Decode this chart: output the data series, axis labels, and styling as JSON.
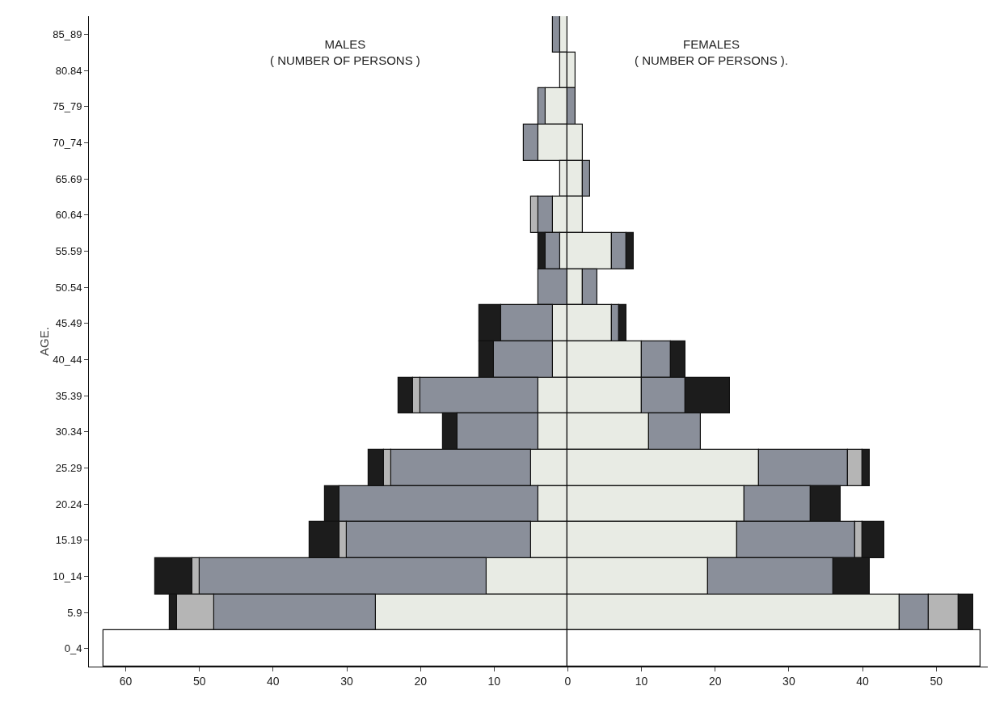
{
  "chart_data": {
    "type": "bar",
    "orientation": "horizontal",
    "stacked": true,
    "ylabel": "AGE.",
    "annotations": [
      "MALES\n( NUMBER OF PERSONS )",
      "FEMALES\n( NUMBER OF PERSONS )."
    ],
    "categories": [
      "85_89",
      "80.84",
      "75_79",
      "70_74",
      "65.69",
      "60.64",
      "55.59",
      "50.54",
      "45.49",
      "40_44",
      "35.39",
      "30.34",
      "25.29",
      "20.24",
      "15.19",
      "10_14",
      "5.9",
      "0_4"
    ],
    "series": [
      {
        "color": "#e8ebe4",
        "values": [
          -1,
          -1,
          -3,
          -4,
          -1,
          -2,
          -1,
          null,
          -2,
          -2,
          -4,
          -4,
          -5,
          -4,
          -5,
          -11,
          -26,
          null
        ]
      },
      {
        "color": "#8a8f9a",
        "values": [
          -1,
          null,
          -1,
          -2,
          null,
          -2,
          -2,
          -4,
          -7,
          -8,
          -16,
          -11,
          -19,
          -27,
          -25,
          -39,
          -22,
          null
        ]
      },
      {
        "color": "#b5b5b5",
        "values": [
          null,
          null,
          null,
          null,
          null,
          -1,
          null,
          null,
          null,
          null,
          -1,
          null,
          -1,
          null,
          -1,
          -1,
          -5,
          null
        ]
      },
      {
        "color": "#1c1c1c",
        "values": [
          null,
          null,
          null,
          null,
          null,
          null,
          -1,
          null,
          -3,
          -2,
          -2,
          -2,
          -2,
          -2,
          -4,
          -5,
          -1,
          null
        ]
      },
      {
        "color": "#ffffff",
        "values": [
          null,
          null,
          null,
          null,
          null,
          null,
          null,
          null,
          null,
          null,
          null,
          null,
          null,
          null,
          null,
          null,
          null,
          -63
        ]
      },
      {
        "color": "#e8ebe4",
        "values": [
          null,
          1,
          null,
          2,
          2,
          2,
          6,
          2,
          6,
          10,
          10,
          11,
          26,
          24,
          23,
          19,
          45,
          null
        ]
      },
      {
        "color": "#8a8f9a",
        "values": [
          null,
          null,
          1,
          null,
          1,
          null,
          2,
          2,
          1,
          4,
          6,
          7,
          12,
          9,
          16,
          17,
          4,
          null
        ]
      },
      {
        "color": "#b5b5b5",
        "values": [
          null,
          null,
          null,
          null,
          null,
          null,
          null,
          null,
          null,
          null,
          null,
          null,
          2,
          null,
          1,
          null,
          4,
          null
        ]
      },
      {
        "color": "#1c1c1c",
        "values": [
          null,
          null,
          null,
          null,
          null,
          null,
          1,
          null,
          1,
          2,
          6,
          null,
          1,
          4,
          3,
          5,
          2,
          null
        ]
      },
      {
        "color": "#ffffff",
        "values": [
          null,
          null,
          null,
          null,
          null,
          null,
          null,
          null,
          null,
          null,
          null,
          null,
          null,
          null,
          null,
          null,
          null,
          56
        ]
      }
    ],
    "xlim": [
      -65,
      57
    ],
    "xticks": [
      {
        "value": -60,
        "label": "60"
      },
      {
        "value": -50,
        "label": "50"
      },
      {
        "value": -40,
        "label": "40"
      },
      {
        "value": -30,
        "label": "30"
      },
      {
        "value": -20,
        "label": "20"
      },
      {
        "value": -10,
        "label": "10"
      },
      0,
      10,
      20,
      30,
      40,
      50
    ],
    "grid": false
  }
}
